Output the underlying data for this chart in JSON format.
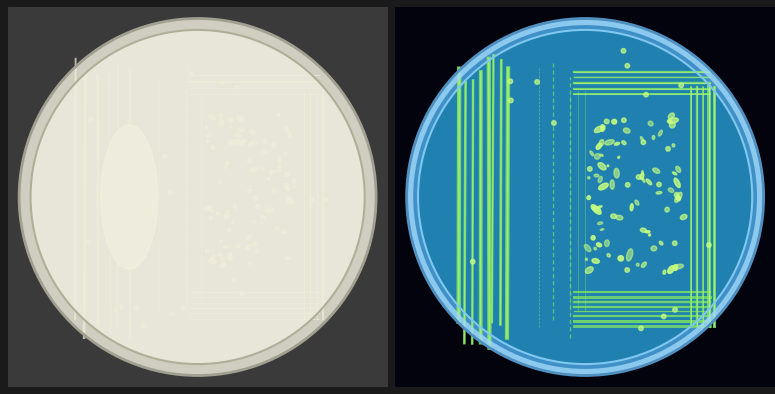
{
  "figure_width": 7.75,
  "figure_height": 3.94,
  "dpi": 100,
  "background_color": "#1a1a1a",
  "left_panel": {
    "bg_color": "#5a5a5a",
    "dish_color": "#e8e6d8",
    "dish_edge_color": "#c8c6b8",
    "rim_color": "#d0cec0",
    "colony_color": "#f0eed8",
    "highlight_color": "#fffff0",
    "streak_color": "#dddbc5"
  },
  "right_panel": {
    "bg_color": "#050510",
    "dish_color": "#1a6090",
    "dish_glow_color": "#2090c0",
    "rim_color": "#60b0e0",
    "colony_color": "#c8ff80",
    "bright_colony_color": "#e8ffb0",
    "agar_color": "#2080b0",
    "gfp_green": "#80e860"
  }
}
